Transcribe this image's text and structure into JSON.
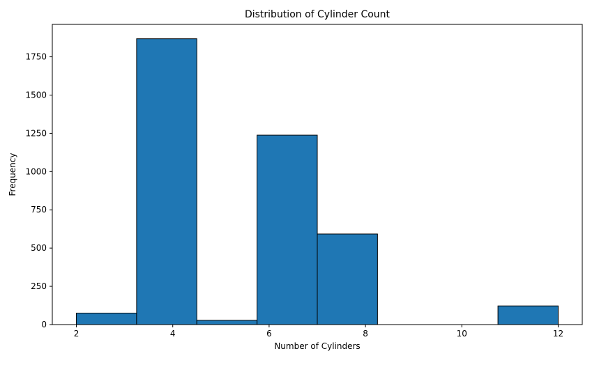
{
  "chart_data": {
    "type": "bar",
    "title": "Distribution of Cylinder Count",
    "xlabel": "Number of Cylinders",
    "ylabel": "Frequency",
    "xlim": [
      1.5,
      12.5
    ],
    "ylim": [
      0,
      1962
    ],
    "xticks": [
      2,
      4,
      6,
      8,
      10,
      12
    ],
    "yticks": [
      0,
      250,
      500,
      750,
      1000,
      1250,
      1500,
      1750
    ],
    "grid": false,
    "bins": [
      {
        "x0": 2.0,
        "x1": 3.25,
        "value": 75
      },
      {
        "x0": 3.25,
        "x1": 4.5,
        "value": 1868
      },
      {
        "x0": 4.5,
        "x1": 5.75,
        "value": 28
      },
      {
        "x0": 5.75,
        "x1": 7.0,
        "value": 1238
      },
      {
        "x0": 7.0,
        "x1": 8.25,
        "value": 592
      },
      {
        "x0": 8.25,
        "x1": 9.5,
        "value": 0
      },
      {
        "x0": 9.5,
        "x1": 10.75,
        "value": 0
      },
      {
        "x0": 10.75,
        "x1": 12.0,
        "value": 122
      }
    ],
    "colors": {
      "bar_fill": "#1f77b4",
      "bar_edge": "#000000"
    }
  }
}
